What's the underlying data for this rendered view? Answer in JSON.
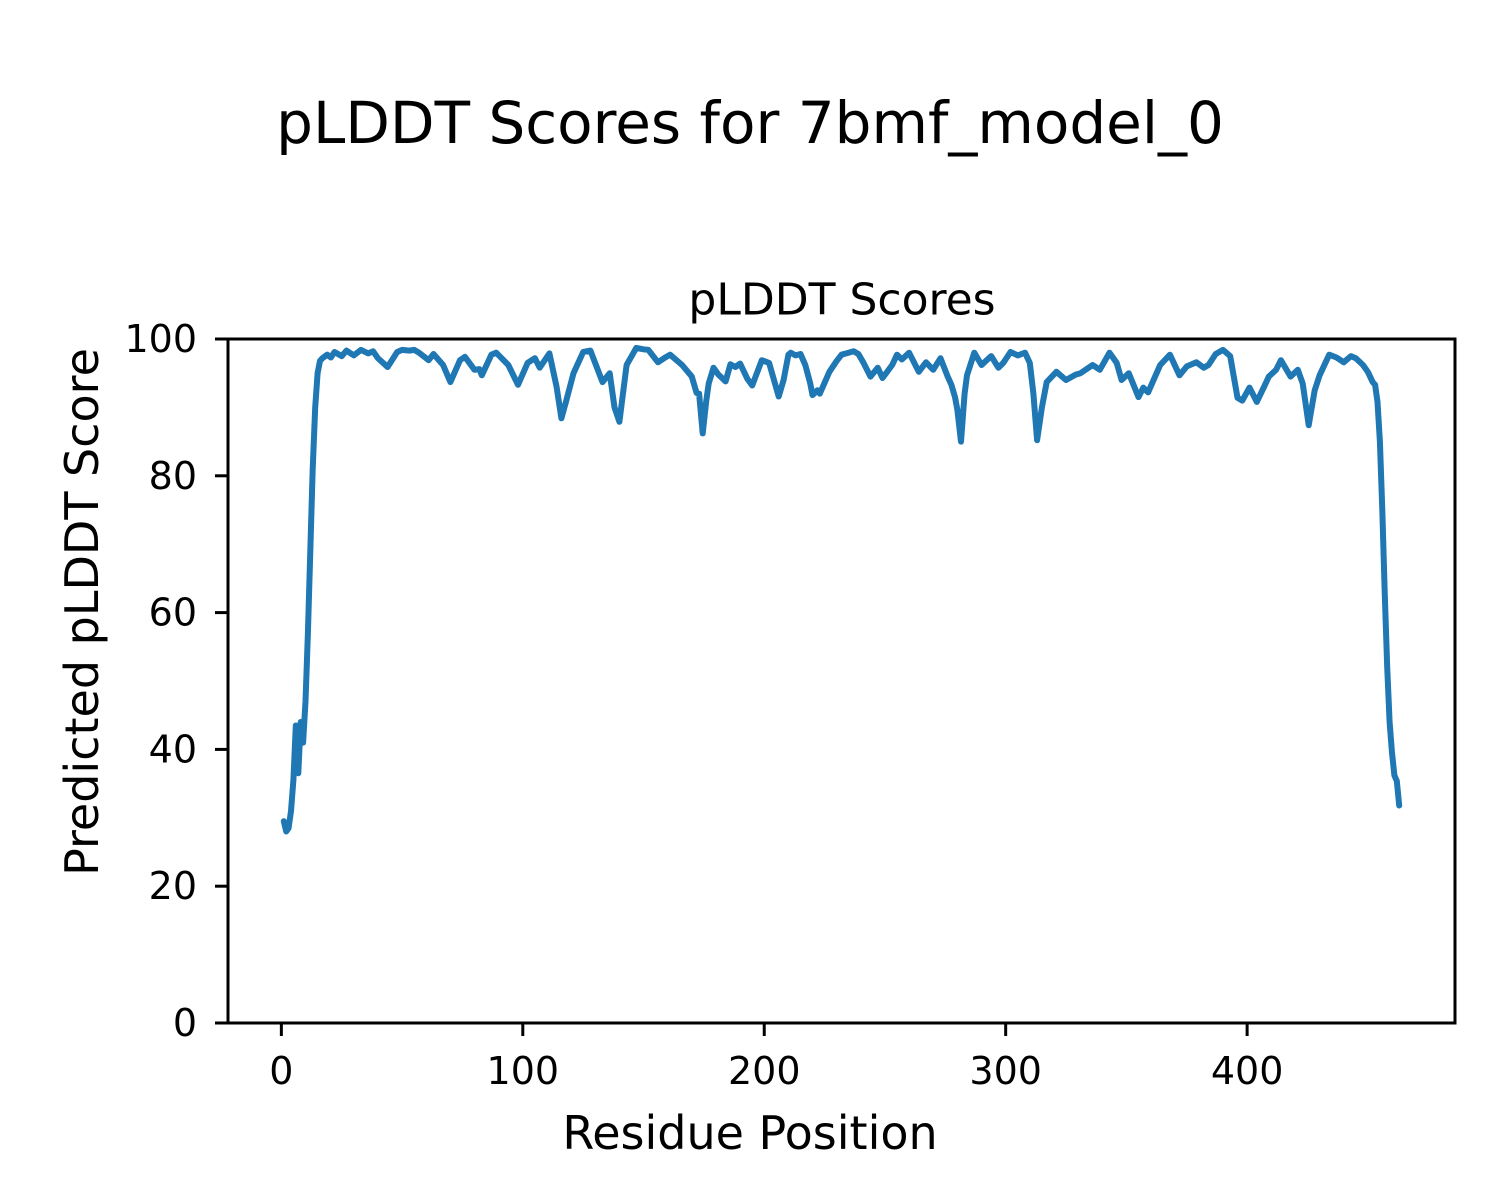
{
  "figure": {
    "suptitle": "pLDDT Scores for 7bmf_model_0"
  },
  "chart_data": {
    "type": "line",
    "title": "pLDDT Scores",
    "xlabel": "Residue Position",
    "ylabel": "Predicted pLDDT Score",
    "xlim": [
      -22.1,
      486.1
    ],
    "ylim": [
      0,
      100
    ],
    "x_ticks": [
      0,
      100,
      200,
      300,
      400
    ],
    "y_ticks": [
      0,
      20,
      40,
      60,
      80,
      100
    ],
    "grid": false,
    "legend": "none",
    "line_color": "#1f77b4",
    "axis_color": "#000000",
    "series": [
      {
        "name": "pLDDT",
        "x": [
          1,
          2,
          3,
          4,
          5,
          6,
          7,
          8,
          9,
          10,
          11,
          12,
          13,
          14,
          15,
          16,
          17,
          19,
          20.5,
          22,
          25,
          27,
          30,
          33,
          36,
          38,
          40,
          44,
          48,
          50,
          53,
          55,
          57,
          60,
          61,
          63,
          67,
          70,
          74,
          76,
          80,
          82,
          83,
          87,
          89,
          94,
          98,
          102,
          105,
          107,
          111,
          114,
          116,
          118,
          121,
          125,
          128,
          133,
          136,
          138,
          140,
          143,
          147,
          150,
          152,
          156,
          159,
          161,
          164,
          166,
          170,
          172,
          173,
          174.5,
          176,
          177,
          179,
          181,
          184,
          186,
          188,
          190,
          193,
          195,
          199,
          202,
          206,
          208,
          210,
          211,
          213,
          215,
          217,
          219,
          220,
          222,
          223,
          227,
          230,
          232,
          234,
          237,
          239,
          241,
          244,
          247,
          249,
          253,
          255,
          257,
          260,
          264,
          267,
          270,
          273,
          276,
          277.5,
          279,
          280,
          281.5,
          283,
          284,
          287,
          290,
          294,
          297,
          299,
          302,
          305,
          308,
          310,
          311.5,
          313,
          315,
          317,
          321,
          325,
          329,
          331,
          336,
          339,
          343,
          346,
          348,
          351,
          355,
          357,
          359,
          364,
          368,
          372,
          375,
          379,
          382,
          384,
          387,
          390,
          393,
          396,
          398,
          401,
          404,
          407,
          409,
          412,
          414,
          418,
          421,
          423,
          425.5,
          428,
          430,
          434,
          437,
          440,
          443,
          445,
          448,
          450,
          452,
          453,
          454,
          455,
          456,
          457,
          458,
          459,
          460,
          461,
          462,
          463
        ],
        "y": [
          29.5,
          28,
          28.5,
          31,
          35.5,
          43.5,
          36.5,
          44,
          41,
          47,
          57,
          69,
          81,
          90,
          95,
          96.8,
          97.2,
          97.7,
          97.3,
          98.1,
          97.5,
          98.3,
          97.6,
          98.4,
          97.9,
          98.2,
          97.2,
          95.9,
          98.1,
          98.4,
          98.3,
          98.4,
          98,
          97.2,
          96.9,
          97.8,
          96.2,
          93.7,
          96.9,
          97.4,
          95.5,
          95.6,
          94.7,
          97.7,
          98,
          96.2,
          93.3,
          96.5,
          97.2,
          95.8,
          97.9,
          93,
          88.4,
          91,
          95,
          98.1,
          98.3,
          93.7,
          95,
          90,
          87.9,
          96.2,
          98.7,
          98.5,
          98.4,
          96.6,
          97.3,
          97.7,
          96.8,
          96.2,
          94.5,
          92.1,
          92,
          86.2,
          91,
          93.5,
          95.8,
          94.8,
          93.8,
          96.3,
          95.9,
          96.4,
          94.2,
          93.2,
          96.9,
          96.5,
          91.6,
          94,
          97.7,
          98,
          97.6,
          97.8,
          96.2,
          93.6,
          91.8,
          92.5,
          92,
          95.2,
          96.8,
          97.7,
          97.9,
          98.2,
          97.8,
          96.6,
          94.5,
          95.8,
          94.3,
          96.2,
          97.7,
          97,
          98,
          95.2,
          96.6,
          95.5,
          97.2,
          94.5,
          93.3,
          91.5,
          89.6,
          85,
          92,
          94.7,
          98,
          96.2,
          97.5,
          95.8,
          96.5,
          98.1,
          97.6,
          98,
          96.5,
          92,
          85.2,
          90,
          93.7,
          95.2,
          94,
          94.8,
          95,
          96.2,
          95.5,
          98,
          96.5,
          94,
          95,
          91.5,
          92.9,
          92.2,
          96.2,
          97.7,
          94.7,
          96,
          96.6,
          95.8,
          96.2,
          97.8,
          98.4,
          97.5,
          91.4,
          91,
          92.9,
          90.8,
          93,
          94.5,
          95.5,
          96.9,
          94.5,
          95.5,
          93.5,
          87.4,
          92.5,
          94.7,
          97.7,
          97.3,
          96.6,
          97.5,
          97.2,
          96.2,
          95.2,
          93.7,
          93.3,
          90.8,
          85,
          75,
          63,
          52,
          44,
          39.5,
          36.2,
          35.4,
          31.8
        ]
      }
    ]
  }
}
